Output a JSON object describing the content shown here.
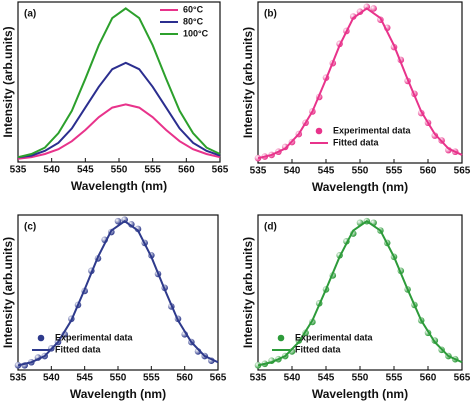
{
  "chart_data": [
    {
      "type": "line",
      "label": "(a)",
      "xlabel": "Wavelength (nm)",
      "ylabel": "Intensity (arb.units)",
      "xlim": [
        535,
        565
      ],
      "xticks": [
        535,
        540,
        545,
        550,
        555,
        560,
        565
      ],
      "ylim": [
        0,
        1
      ],
      "legend": "upper right",
      "series": [
        {
          "name": "60°C",
          "color": "#e8338b",
          "mode": "lines",
          "x": [
            535,
            537,
            539,
            541,
            543,
            545,
            547,
            549,
            551,
            553,
            555,
            557,
            559,
            561,
            563,
            565
          ],
          "values": [
            0.02,
            0.03,
            0.05,
            0.08,
            0.13,
            0.2,
            0.28,
            0.34,
            0.36,
            0.34,
            0.28,
            0.2,
            0.13,
            0.08,
            0.05,
            0.03
          ]
        },
        {
          "name": "80°C",
          "color": "#2b2e8f",
          "mode": "lines",
          "x": [
            535,
            537,
            539,
            541,
            543,
            545,
            547,
            549,
            551,
            553,
            555,
            557,
            559,
            561,
            563,
            565
          ],
          "values": [
            0.03,
            0.04,
            0.07,
            0.12,
            0.21,
            0.34,
            0.47,
            0.58,
            0.62,
            0.58,
            0.47,
            0.34,
            0.21,
            0.12,
            0.07,
            0.04
          ]
        },
        {
          "name": "100°C",
          "color": "#2ca02c",
          "mode": "lines",
          "x": [
            535,
            537,
            539,
            541,
            543,
            545,
            547,
            549,
            551,
            553,
            555,
            557,
            559,
            561,
            563,
            565
          ],
          "values": [
            0.03,
            0.05,
            0.09,
            0.18,
            0.32,
            0.52,
            0.73,
            0.9,
            0.96,
            0.9,
            0.73,
            0.52,
            0.32,
            0.18,
            0.09,
            0.05
          ]
        }
      ]
    },
    {
      "type": "line",
      "label": "(b)",
      "xlabel": "Wavelength (nm)",
      "ylabel": "Intensity (arb.units)",
      "xlim": [
        535,
        565
      ],
      "xticks": [
        535,
        540,
        545,
        550,
        555,
        560,
        565
      ],
      "ylim": [
        0,
        1
      ],
      "legend": "lower center",
      "series": [
        {
          "name": "Experimental data",
          "color": "#e8338b",
          "mode": "markers",
          "x": [
            535,
            536,
            537,
            538,
            539,
            540,
            541,
            542,
            543,
            544,
            545,
            546,
            547,
            548,
            549,
            550,
            551,
            552,
            553,
            554,
            555,
            556,
            557,
            558,
            559,
            560,
            561,
            562,
            563,
            564
          ],
          "values": [
            0.03,
            0.04,
            0.05,
            0.07,
            0.1,
            0.13,
            0.18,
            0.25,
            0.32,
            0.41,
            0.53,
            0.62,
            0.74,
            0.82,
            0.91,
            0.94,
            0.97,
            0.96,
            0.89,
            0.84,
            0.72,
            0.64,
            0.51,
            0.43,
            0.31,
            0.25,
            0.17,
            0.14,
            0.08,
            0.07
          ]
        },
        {
          "name": "Fitted data",
          "color": "#e8338b",
          "mode": "lines",
          "x": [
            535,
            537,
            539,
            541,
            543,
            545,
            547,
            549,
            551,
            553,
            555,
            557,
            559,
            561,
            563,
            565
          ],
          "values": [
            0.03,
            0.05,
            0.09,
            0.18,
            0.32,
            0.52,
            0.73,
            0.9,
            0.96,
            0.9,
            0.73,
            0.52,
            0.32,
            0.18,
            0.09,
            0.05
          ]
        }
      ]
    },
    {
      "type": "line",
      "label": "(c)",
      "xlabel": "Wavelength (nm)",
      "ylabel": "Intensity (arb.units)",
      "xlim": [
        535,
        565
      ],
      "xticks": [
        535,
        540,
        545,
        550,
        555,
        560,
        565
      ],
      "ylim": [
        0,
        1
      ],
      "legend": "lower left",
      "series": [
        {
          "name": "Experimental data",
          "color": "#2e3a8c",
          "mode": "markers",
          "x": [
            535,
            536,
            537,
            538,
            539,
            540,
            541,
            542,
            543,
            544,
            545,
            546,
            547,
            548,
            549,
            550,
            551,
            552,
            553,
            554,
            555,
            556,
            557,
            558,
            559,
            560,
            561,
            562,
            563,
            564
          ],
          "values": [
            0.03,
            0.03,
            0.05,
            0.08,
            0.09,
            0.14,
            0.18,
            0.23,
            0.33,
            0.42,
            0.51,
            0.64,
            0.72,
            0.84,
            0.89,
            0.96,
            0.97,
            0.94,
            0.91,
            0.82,
            0.74,
            0.62,
            0.53,
            0.41,
            0.33,
            0.23,
            0.18,
            0.12,
            0.09,
            0.06
          ]
        },
        {
          "name": "Fitted data",
          "color": "#2e3a8c",
          "mode": "lines",
          "x": [
            535,
            537,
            539,
            541,
            543,
            545,
            547,
            549,
            551,
            553,
            555,
            557,
            559,
            561,
            563,
            565
          ],
          "values": [
            0.03,
            0.05,
            0.09,
            0.18,
            0.32,
            0.52,
            0.73,
            0.9,
            0.96,
            0.9,
            0.73,
            0.52,
            0.32,
            0.18,
            0.09,
            0.05
          ]
        }
      ]
    },
    {
      "type": "line",
      "label": "(d)",
      "xlabel": "Wavelength (nm)",
      "ylabel": "Intensity (arb.units)",
      "xlim": [
        535,
        565
      ],
      "xticks": [
        535,
        540,
        545,
        550,
        555,
        560,
        565
      ],
      "ylim": [
        0,
        1
      ],
      "legend": "lower left",
      "series": [
        {
          "name": "Experimental data",
          "color": "#2d9b3a",
          "mode": "markers",
          "x": [
            535,
            536,
            537,
            538,
            539,
            540,
            541,
            542,
            543,
            544,
            545,
            546,
            547,
            548,
            549,
            550,
            551,
            552,
            553,
            554,
            555,
            556,
            557,
            558,
            559,
            560,
            561,
            562,
            563,
            564
          ],
          "values": [
            0.03,
            0.04,
            0.06,
            0.07,
            0.09,
            0.12,
            0.19,
            0.24,
            0.31,
            0.43,
            0.52,
            0.61,
            0.74,
            0.83,
            0.88,
            0.95,
            0.96,
            0.95,
            0.9,
            0.82,
            0.73,
            0.64,
            0.52,
            0.42,
            0.32,
            0.24,
            0.19,
            0.13,
            0.09,
            0.07
          ]
        },
        {
          "name": "Fitted data",
          "color": "#2d9b3a",
          "mode": "lines",
          "x": [
            535,
            537,
            539,
            541,
            543,
            545,
            547,
            549,
            551,
            553,
            555,
            557,
            559,
            561,
            563,
            565
          ],
          "values": [
            0.03,
            0.05,
            0.09,
            0.18,
            0.32,
            0.52,
            0.73,
            0.9,
            0.96,
            0.9,
            0.73,
            0.52,
            0.32,
            0.18,
            0.09,
            0.05
          ]
        }
      ]
    }
  ]
}
